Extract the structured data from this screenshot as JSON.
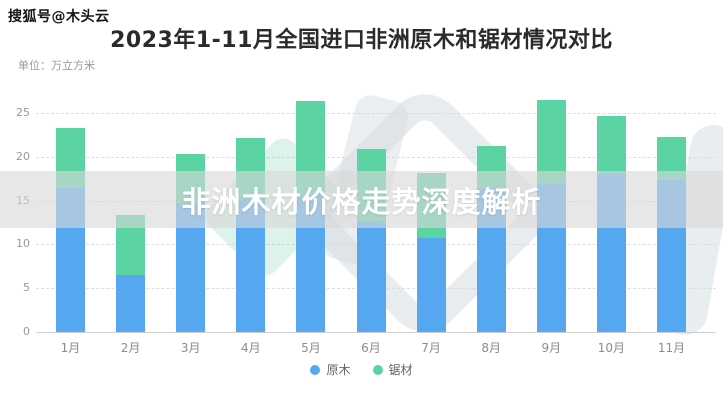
{
  "watermark": "搜狐号@木头云",
  "header": {
    "title": "2023年1-11月全国进口非洲原木和锯材情况对比",
    "unit_label": "单位：万立方米"
  },
  "banner": {
    "text": "非洲木材价格走势深度解析"
  },
  "colors": {
    "logs_blue": "#55a8ef",
    "sawn_green": "#5bd3a2",
    "banner_gray": "rgba(216,216,216,0.62)",
    "grid_gray": "#dedede",
    "text_gray": "#999999"
  },
  "chart_data": {
    "type": "bar",
    "stacked": true,
    "title": "2023年1-11月全国进口非洲原木和锯材情况对比",
    "ylabel": "万立方米",
    "xlabel": "",
    "categories": [
      "1月",
      "2月",
      "3月",
      "4月",
      "5月",
      "6月",
      "7月",
      "8月",
      "9月",
      "10月",
      "11月"
    ],
    "series": [
      {
        "name": "原木",
        "color": "#55a8ef",
        "values": [
          16.4,
          6.5,
          14.7,
          15.1,
          15.5,
          12.7,
          10.7,
          16.4,
          16.9,
          18.0,
          17.3
        ]
      },
      {
        "name": "锯材",
        "color": "#5bd3a2",
        "values": [
          6.9,
          6.8,
          5.6,
          7.1,
          10.9,
          8.2,
          7.5,
          4.8,
          9.6,
          6.7,
          5.0
        ]
      }
    ],
    "totals": [
      23.3,
      13.3,
      20.3,
      22.2,
      26.4,
      20.9,
      18.2,
      21.2,
      26.5,
      24.7,
      22.3
    ],
    "ylim": [
      0,
      27.5
    ],
    "yticks": [
      0,
      5,
      10,
      15,
      20,
      25
    ],
    "grid": "horizontal-dashed",
    "legend_position": "bottom"
  },
  "legend": [
    {
      "label": "原木",
      "color": "#55a8ef"
    },
    {
      "label": "锯材",
      "color": "#5bd3a2"
    }
  ]
}
